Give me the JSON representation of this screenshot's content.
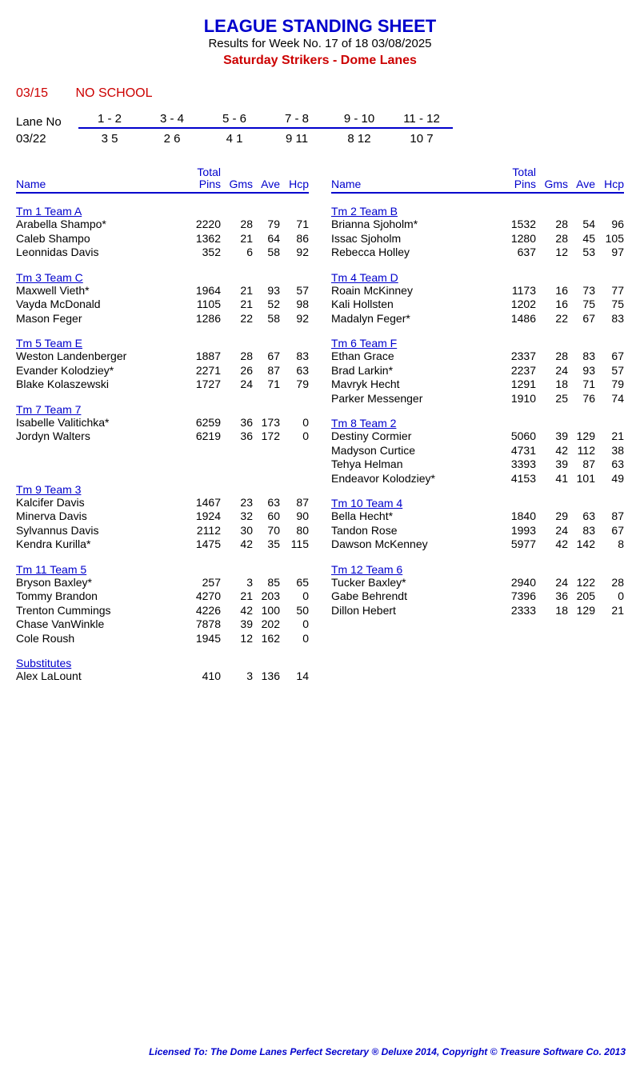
{
  "header": {
    "title": "LEAGUE STANDING SHEET",
    "subtitle": "Results for Week No. 17 of 18    03/08/2025",
    "league": "Saturday Strikers - Dome Lanes"
  },
  "notice": {
    "date": "03/15",
    "message": "NO SCHOOL"
  },
  "lanes": {
    "label": "Lane No",
    "pairs": [
      "1 -  2",
      "3 -  4",
      "5 -  6",
      "7 -  8",
      "9 - 10",
      "11 - 12"
    ],
    "assign_date": "03/22",
    "assign": [
      "3   5",
      "2   6",
      "4   1",
      "9  11",
      "8  12",
      "10   7"
    ]
  },
  "col_headers": {
    "name": "Name",
    "pins_top": "Total",
    "pins": "Pins",
    "gms": "Gms",
    "ave": "Ave",
    "hcp": "Hcp"
  },
  "left_teams": [
    {
      "team": "Tm 1 Team A",
      "players": [
        {
          "name": "Arabella Shampo*",
          "pins": "2220",
          "gms": "28",
          "ave": "79",
          "hcp": "71"
        },
        {
          "name": "Caleb Shampo",
          "pins": "1362",
          "gms": "21",
          "ave": "64",
          "hcp": "86"
        },
        {
          "name": "Leonnidas Davis",
          "pins": "352",
          "gms": "6",
          "ave": "58",
          "hcp": "92"
        }
      ]
    },
    {
      "team": "Tm 3 Team C",
      "players": [
        {
          "name": "Maxwell Vieth*",
          "pins": "1964",
          "gms": "21",
          "ave": "93",
          "hcp": "57"
        },
        {
          "name": "Vayda McDonald",
          "pins": "1105",
          "gms": "21",
          "ave": "52",
          "hcp": "98"
        },
        {
          "name": "Mason Feger",
          "pins": "1286",
          "gms": "22",
          "ave": "58",
          "hcp": "92"
        }
      ]
    },
    {
      "team": "Tm 5 Team E",
      "players": [
        {
          "name": "Weston Landenberger",
          "pins": "1887",
          "gms": "28",
          "ave": "67",
          "hcp": "83"
        },
        {
          "name": "Evander Kolodziey*",
          "pins": "2271",
          "gms": "26",
          "ave": "87",
          "hcp": "63"
        },
        {
          "name": "Blake Kolaszewski",
          "pins": "1727",
          "gms": "24",
          "ave": "71",
          "hcp": "79"
        }
      ]
    },
    {
      "team": "Tm 7 Team 7",
      "players": [
        {
          "name": "Isabelle Valitichka*",
          "pins": "6259",
          "gms": "36",
          "ave": "173",
          "hcp": "0"
        },
        {
          "name": "Jordyn Walters",
          "pins": "6219",
          "gms": "36",
          "ave": "172",
          "hcp": "0"
        },
        {
          "name": "",
          "pins": "",
          "gms": "",
          "ave": "",
          "hcp": ""
        },
        {
          "name": "",
          "pins": "",
          "gms": "",
          "ave": "",
          "hcp": ""
        }
      ]
    },
    {
      "team": "Tm 9 Team 3",
      "players": [
        {
          "name": "Kalcifer Davis",
          "pins": "1467",
          "gms": "23",
          "ave": "63",
          "hcp": "87"
        },
        {
          "name": "Minerva Davis",
          "pins": "1924",
          "gms": "32",
          "ave": "60",
          "hcp": "90"
        },
        {
          "name": "Sylvannus Davis",
          "pins": "2112",
          "gms": "30",
          "ave": "70",
          "hcp": "80"
        },
        {
          "name": "Kendra Kurilla*",
          "pins": "1475",
          "gms": "42",
          "ave": "35",
          "hcp": "115"
        }
      ]
    },
    {
      "team": "Tm 11 Team 5",
      "players": [
        {
          "name": "Bryson Baxley*",
          "pins": "257",
          "gms": "3",
          "ave": "85",
          "hcp": "65"
        },
        {
          "name": "Tommy Brandon",
          "pins": "4270",
          "gms": "21",
          "ave": "203",
          "hcp": "0"
        },
        {
          "name": "Trenton Cummings",
          "pins": "4226",
          "gms": "42",
          "ave": "100",
          "hcp": "50"
        },
        {
          "name": "Chase VanWinkle",
          "pins": "7878",
          "gms": "39",
          "ave": "202",
          "hcp": "0"
        },
        {
          "name": "Cole Roush",
          "pins": "1945",
          "gms": "12",
          "ave": "162",
          "hcp": "0"
        }
      ]
    },
    {
      "team": "Substitutes",
      "players": [
        {
          "name": "Alex LaLount",
          "pins": "410",
          "gms": "3",
          "ave": "136",
          "hcp": "14"
        }
      ]
    }
  ],
  "right_teams": [
    {
      "team": "Tm 2 Team B",
      "players": [
        {
          "name": "Brianna Sjoholm*",
          "pins": "1532",
          "gms": "28",
          "ave": "54",
          "hcp": "96"
        },
        {
          "name": "Issac Sjoholm",
          "pins": "1280",
          "gms": "28",
          "ave": "45",
          "hcp": "105"
        },
        {
          "name": "Rebecca Holley",
          "pins": "637",
          "gms": "12",
          "ave": "53",
          "hcp": "97"
        }
      ]
    },
    {
      "team": "Tm 4 Team D",
      "players": [
        {
          "name": "Roain McKinney",
          "pins": "1173",
          "gms": "16",
          "ave": "73",
          "hcp": "77"
        },
        {
          "name": "Kali Hollsten",
          "pins": "1202",
          "gms": "16",
          "ave": "75",
          "hcp": "75"
        },
        {
          "name": "Madalyn Feger*",
          "pins": "1486",
          "gms": "22",
          "ave": "67",
          "hcp": "83"
        }
      ]
    },
    {
      "team": "Tm 6 Team F",
      "players": [
        {
          "name": "Ethan Grace",
          "pins": "2337",
          "gms": "28",
          "ave": "83",
          "hcp": "67"
        },
        {
          "name": "Brad Larkin*",
          "pins": "2237",
          "gms": "24",
          "ave": "93",
          "hcp": "57"
        },
        {
          "name": "Mavryk Hecht",
          "pins": "1291",
          "gms": "18",
          "ave": "71",
          "hcp": "79"
        },
        {
          "name": "Parker Messenger",
          "pins": "1910",
          "gms": "25",
          "ave": "76",
          "hcp": "74"
        }
      ]
    },
    {
      "team": "Tm 8 Team 2",
      "players": [
        {
          "name": "Destiny Cormier",
          "pins": "5060",
          "gms": "39",
          "ave": "129",
          "hcp": "21"
        },
        {
          "name": "Madyson Curtice",
          "pins": "4731",
          "gms": "42",
          "ave": "112",
          "hcp": "38"
        },
        {
          "name": "Tehya Helman",
          "pins": "3393",
          "gms": "39",
          "ave": "87",
          "hcp": "63"
        },
        {
          "name": "Endeavor Kolodziey*",
          "pins": "4153",
          "gms": "41",
          "ave": "101",
          "hcp": "49"
        }
      ]
    },
    {
      "team": "Tm 10 Team 4",
      "players": [
        {
          "name": "Bella Hecht*",
          "pins": "1840",
          "gms": "29",
          "ave": "63",
          "hcp": "87"
        },
        {
          "name": "Tandon Rose",
          "pins": "1993",
          "gms": "24",
          "ave": "83",
          "hcp": "67"
        },
        {
          "name": "Dawson McKenney",
          "pins": "5977",
          "gms": "42",
          "ave": "142",
          "hcp": "8"
        }
      ]
    },
    {
      "team": "Tm 12 Team 6",
      "players": [
        {
          "name": "Tucker Baxley*",
          "pins": "2940",
          "gms": "24",
          "ave": "122",
          "hcp": "28"
        },
        {
          "name": "Gabe Behrendt",
          "pins": "7396",
          "gms": "36",
          "ave": "205",
          "hcp": "0"
        },
        {
          "name": "Dillon Hebert",
          "pins": "2333",
          "gms": "18",
          "ave": "129",
          "hcp": "21"
        }
      ]
    }
  ],
  "footer": "Licensed To: The Dome Lanes    Perfect Secretary ® Deluxe  2014, Copyright © Treasure Software Co. 2013",
  "lane_col_width": 78
}
